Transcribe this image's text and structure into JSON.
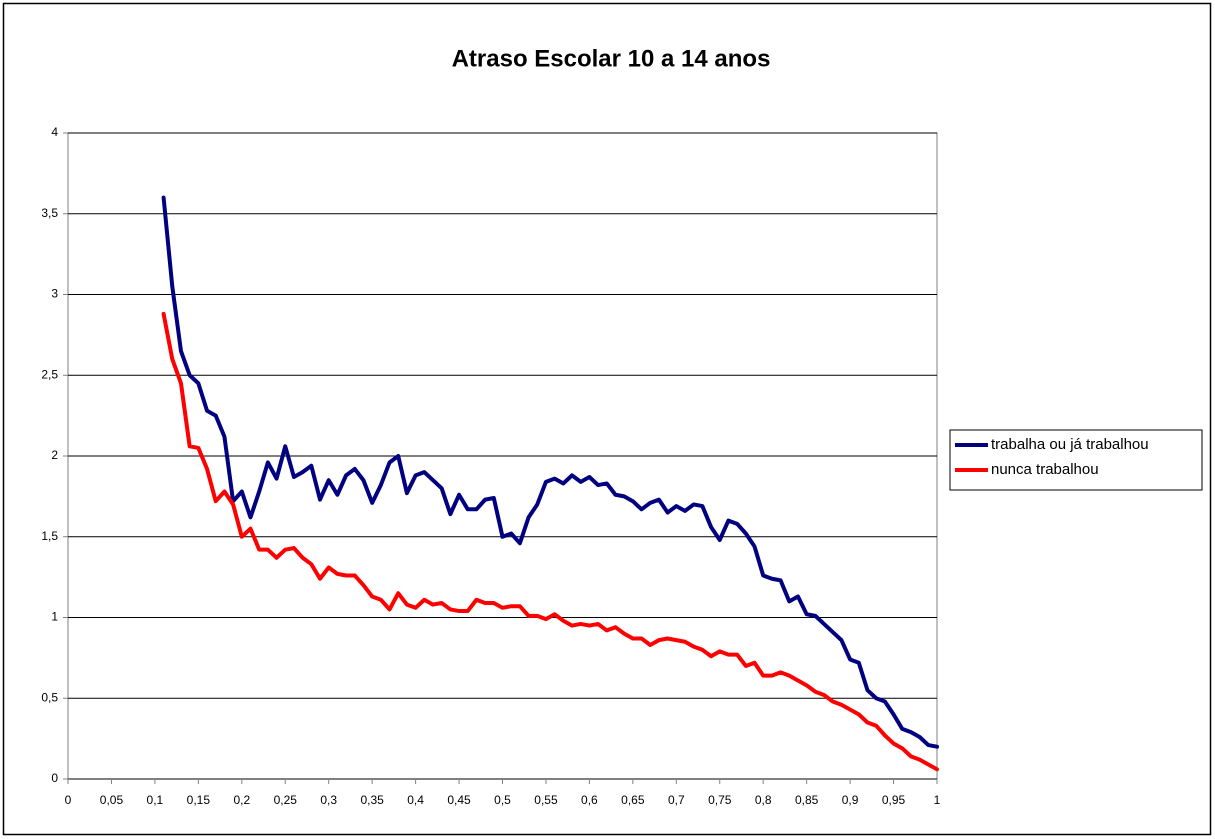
{
  "chart_data": {
    "type": "line",
    "title": "Atraso Escolar 10 a 14 anos",
    "x": [
      0.11,
      0.12,
      0.13,
      0.14,
      0.15,
      0.16,
      0.17,
      0.18,
      0.19,
      0.2,
      0.21,
      0.22,
      0.23,
      0.24,
      0.25,
      0.26,
      0.27,
      0.28,
      0.29,
      0.3,
      0.31,
      0.32,
      0.33,
      0.34,
      0.35,
      0.36,
      0.37,
      0.38,
      0.39,
      0.4,
      0.41,
      0.42,
      0.43,
      0.44,
      0.45,
      0.46,
      0.47,
      0.48,
      0.49,
      0.5,
      0.51,
      0.52,
      0.53,
      0.54,
      0.55,
      0.56,
      0.57,
      0.58,
      0.59,
      0.6,
      0.61,
      0.62,
      0.63,
      0.64,
      0.65,
      0.66,
      0.67,
      0.68,
      0.69,
      0.7,
      0.71,
      0.72,
      0.73,
      0.74,
      0.75,
      0.76,
      0.77,
      0.78,
      0.79,
      0.8,
      0.81,
      0.82,
      0.83,
      0.84,
      0.85,
      0.86,
      0.87,
      0.88,
      0.89,
      0.9,
      0.91,
      0.92,
      0.93,
      0.94,
      0.95,
      0.96,
      0.97,
      0.98,
      0.99,
      1.0
    ],
    "series": [
      {
        "name": "trabalha ou já trabalhou",
        "color": "#000080",
        "values": [
          3.6,
          3.05,
          2.65,
          2.5,
          2.45,
          2.28,
          2.25,
          2.12,
          1.72,
          1.78,
          1.62,
          1.78,
          1.96,
          1.86,
          2.06,
          1.87,
          1.9,
          1.94,
          1.73,
          1.85,
          1.76,
          1.88,
          1.92,
          1.85,
          1.71,
          1.82,
          1.96,
          2.0,
          1.77,
          1.88,
          1.9,
          1.85,
          1.8,
          1.64,
          1.76,
          1.67,
          1.67,
          1.73,
          1.74,
          1.5,
          1.52,
          1.46,
          1.62,
          1.7,
          1.84,
          1.86,
          1.83,
          1.88,
          1.84,
          1.87,
          1.82,
          1.83,
          1.76,
          1.75,
          1.72,
          1.67,
          1.71,
          1.73,
          1.65,
          1.69,
          1.66,
          1.7,
          1.69,
          1.56,
          1.48,
          1.6,
          1.58,
          1.52,
          1.44,
          1.26,
          1.24,
          1.23,
          1.1,
          1.13,
          1.02,
          1.01,
          0.96,
          0.91,
          0.86,
          0.74,
          0.72,
          0.55,
          0.5,
          0.48,
          0.4,
          0.31,
          0.29,
          0.26,
          0.21,
          0.2
        ]
      },
      {
        "name": "nunca trabalhou",
        "color": "#ff0000",
        "values": [
          2.88,
          2.6,
          2.45,
          2.06,
          2.05,
          1.92,
          1.72,
          1.78,
          1.7,
          1.5,
          1.55,
          1.42,
          1.42,
          1.37,
          1.42,
          1.43,
          1.37,
          1.33,
          1.24,
          1.31,
          1.27,
          1.26,
          1.26,
          1.2,
          1.13,
          1.11,
          1.05,
          1.15,
          1.08,
          1.06,
          1.11,
          1.08,
          1.09,
          1.05,
          1.04,
          1.04,
          1.11,
          1.09,
          1.09,
          1.06,
          1.07,
          1.07,
          1.01,
          1.01,
          0.99,
          1.02,
          0.98,
          0.95,
          0.96,
          0.95,
          0.96,
          0.92,
          0.94,
          0.9,
          0.87,
          0.87,
          0.83,
          0.86,
          0.87,
          0.86,
          0.85,
          0.82,
          0.8,
          0.76,
          0.79,
          0.77,
          0.77,
          0.7,
          0.72,
          0.64,
          0.64,
          0.66,
          0.64,
          0.61,
          0.58,
          0.54,
          0.52,
          0.48,
          0.46,
          0.43,
          0.4,
          0.35,
          0.33,
          0.27,
          0.22,
          0.19,
          0.14,
          0.12,
          0.09,
          0.06
        ]
      }
    ],
    "xlim": [
      0,
      1
    ],
    "xticks": [
      0,
      {
        "value": 0.05,
        "label": "0,05"
      },
      {
        "value": 0.1,
        "label": "0,1"
      },
      {
        "value": 0.15,
        "label": "0,15"
      },
      {
        "value": 0.2,
        "label": "0,2"
      },
      {
        "value": 0.25,
        "label": "0,25"
      },
      {
        "value": 0.3,
        "label": "0,3"
      },
      {
        "value": 0.35,
        "label": "0,35"
      },
      {
        "value": 0.4,
        "label": "0,4"
      },
      {
        "value": 0.45,
        "label": "0,45"
      },
      {
        "value": 0.5,
        "label": "0,5"
      },
      {
        "value": 0.55,
        "label": "0,55"
      },
      {
        "value": 0.6,
        "label": "0,6"
      },
      {
        "value": 0.65,
        "label": "0,65"
      },
      {
        "value": 0.7,
        "label": "0,7"
      },
      {
        "value": 0.75,
        "label": "0,75"
      },
      {
        "value": 0.8,
        "label": "0,8"
      },
      {
        "value": 0.85,
        "label": "0,85"
      },
      {
        "value": 0.9,
        "label": "0,9"
      },
      {
        "value": 0.95,
        "label": "0,95"
      },
      1
    ],
    "ylim": [
      0,
      4
    ],
    "yticks": [
      0,
      {
        "value": 0.5,
        "label": "0,5"
      },
      1,
      {
        "value": 1.5,
        "label": "1,5"
      },
      2,
      {
        "value": 2.5,
        "label": "2,5"
      },
      3,
      {
        "value": 3.5,
        "label": "3,5"
      },
      4
    ],
    "grid": true,
    "legend": "right"
  }
}
